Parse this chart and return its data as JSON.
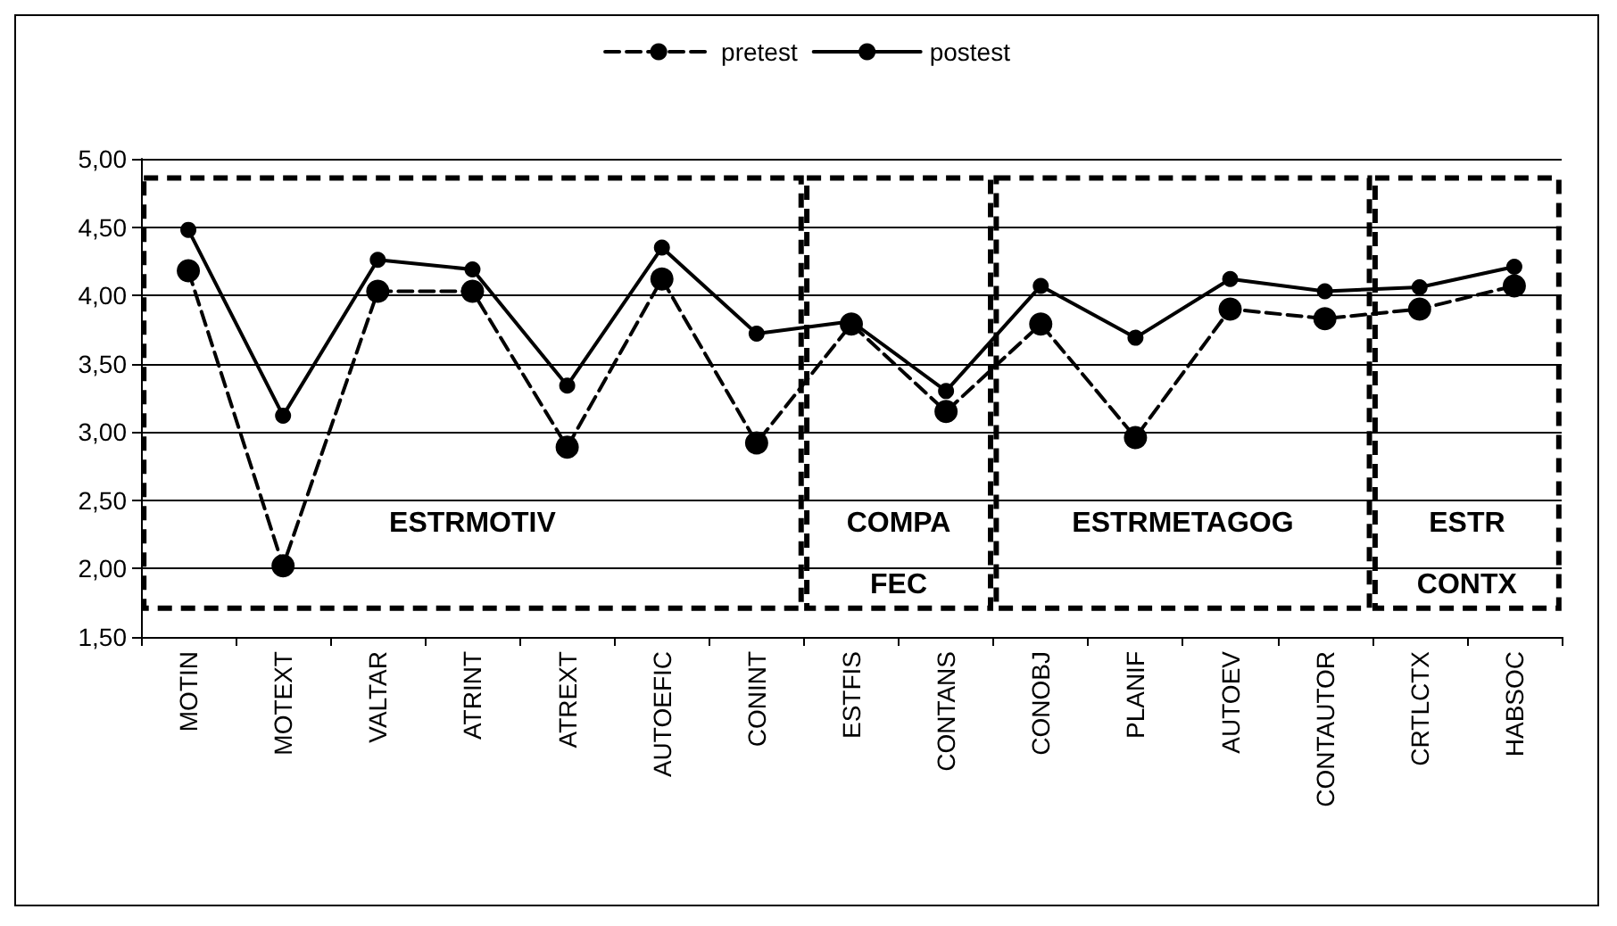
{
  "chart_data": {
    "type": "line",
    "categories": [
      "MOTIN",
      "MOTEXT",
      "VALTAR",
      "ATRINT",
      "ATREXT",
      "AUTOEFIC",
      "CONINT",
      "ESTFIS",
      "CONTANS",
      "CONOBJ",
      "PLANIF",
      "AUTOEV",
      "CONTAUTOR",
      "CRTLCTX",
      "HABSOC"
    ],
    "series": [
      {
        "name": "pretest",
        "color": "#000000",
        "line_style": "dashed",
        "values": [
          4.18,
          2.02,
          4.03,
          4.03,
          2.89,
          4.12,
          2.92,
          3.79,
          3.15,
          3.79,
          2.96,
          3.9,
          3.83,
          3.9,
          4.07
        ]
      },
      {
        "name": "postest",
        "color": "#000000",
        "line_style": "solid",
        "values": [
          4.48,
          3.12,
          4.26,
          4.19,
          3.34,
          4.35,
          3.72,
          3.81,
          3.3,
          4.07,
          3.69,
          4.12,
          4.03,
          4.06,
          4.21
        ]
      }
    ],
    "ylim": [
      1.5,
      5
    ],
    "yticks": [
      {
        "value": 1.5,
        "label": "1,50"
      },
      {
        "value": 2,
        "label": "2,00"
      },
      {
        "value": 2.5,
        "label": "2,50"
      },
      {
        "value": 3,
        "label": "3,00"
      },
      {
        "value": 3.5,
        "label": "3,50"
      },
      {
        "value": 4,
        "label": "4,00"
      },
      {
        "value": 4.5,
        "label": "4,50"
      },
      {
        "value": 5,
        "label": "5,00"
      }
    ],
    "grid": "y",
    "legend": "top",
    "marker": "circle",
    "bands": [
      {
        "axis": "x",
        "from": "MOTIN",
        "to": "CONINT",
        "label": "ESTRMOTIV"
      },
      {
        "axis": "x",
        "from": "ESTFIS",
        "to": "CONTANS",
        "label": "COMPA FEC"
      },
      {
        "axis": "x",
        "from": "CONOBJ",
        "to": "CONTAUTOR",
        "label": "ESTRMETAGOG"
      },
      {
        "axis": "x",
        "from": "CRTLCTX",
        "to": "HABSOC",
        "label": "ESTR CONTX"
      }
    ]
  }
}
